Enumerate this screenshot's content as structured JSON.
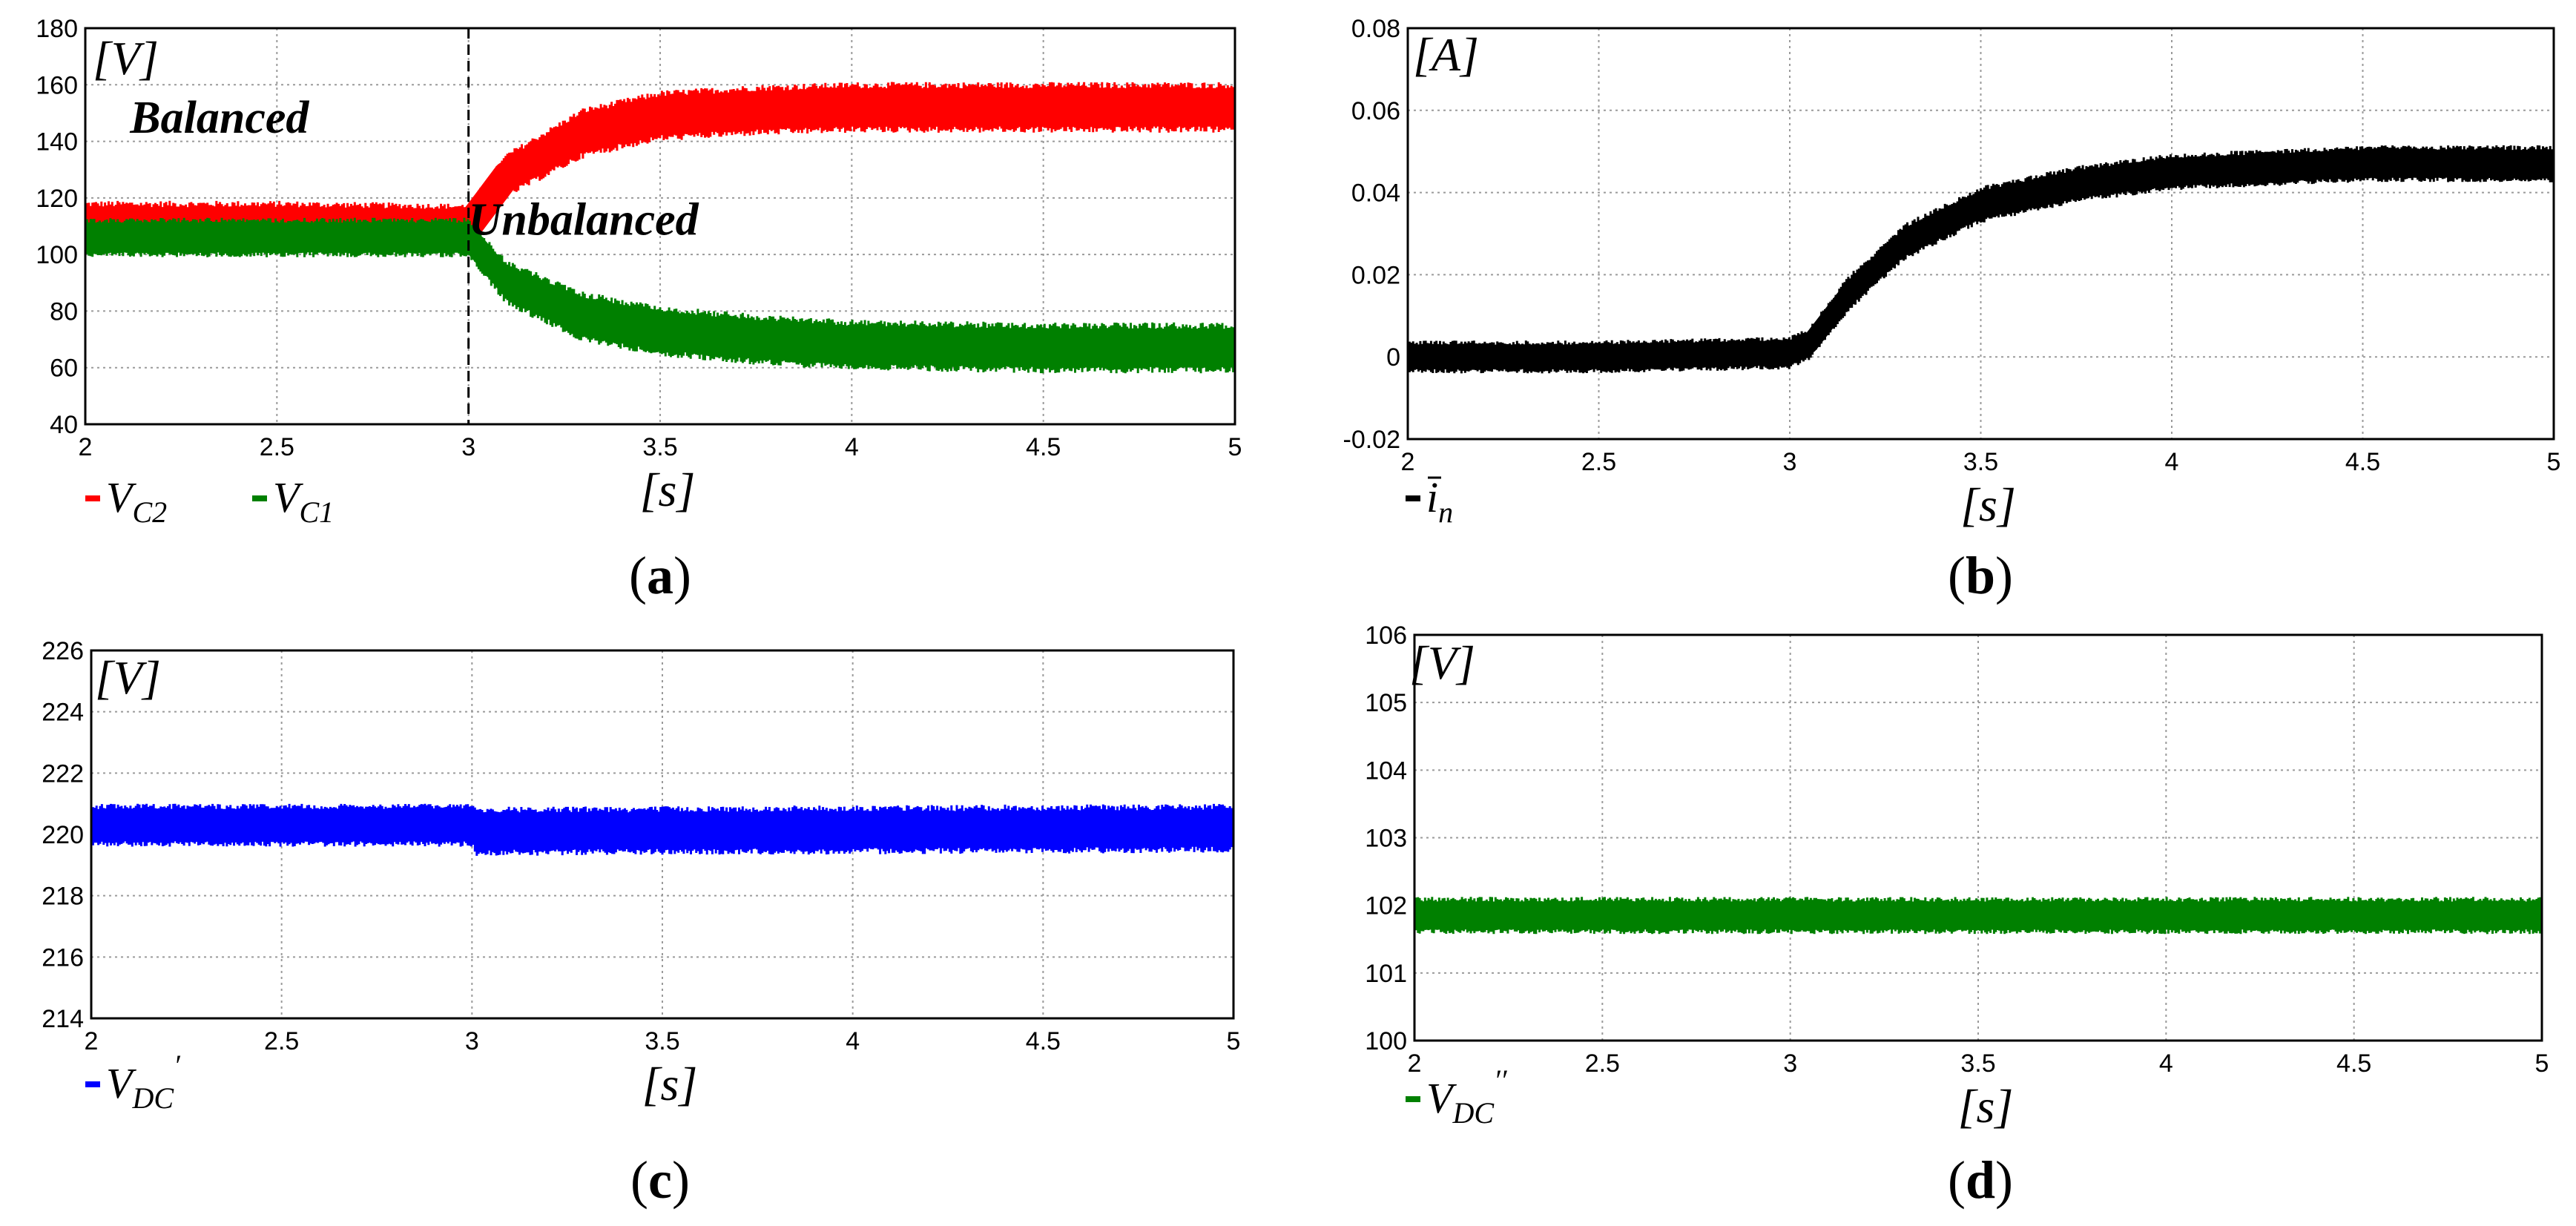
{
  "chart_data": [
    {
      "id": "a",
      "type": "line",
      "caption": "a",
      "y_unit": "[V]",
      "xlabel": "[s]",
      "xlim": [
        2,
        5
      ],
      "ylim": [
        40,
        180
      ],
      "xticks": [
        "2",
        "2.5",
        "3",
        "3.5",
        "4",
        "4.5",
        "5"
      ],
      "yticks": [
        "40",
        "60",
        "80",
        "100",
        "120",
        "140",
        "160",
        "180"
      ],
      "event_time": 3,
      "annotations": [
        {
          "text": "Balanced",
          "x": 2.35,
          "y": 143
        },
        {
          "text": "Unbalanced",
          "x": 3.3,
          "y": 107
        }
      ],
      "series": [
        {
          "name": "V",
          "sub": "C2",
          "color": "#ff0000",
          "x": [
            2,
            2.5,
            3,
            3.1,
            3.3,
            3.5,
            3.75,
            4,
            4.5,
            5
          ],
          "y": [
            110,
            110,
            110,
            128,
            143,
            149,
            151,
            152,
            152,
            152
          ],
          "band": [
            18,
            18,
            16,
            16,
            18,
            18,
            18,
            18,
            18,
            18
          ]
        },
        {
          "name": "V",
          "sub": "C1",
          "color": "#008000",
          "x": [
            2,
            2.5,
            3,
            3.1,
            3.3,
            3.5,
            3.75,
            4,
            4.5,
            5
          ],
          "y": [
            106,
            106,
            106,
            90,
            78,
            73,
            70,
            68,
            67,
            67
          ],
          "band": [
            14,
            14,
            14,
            16,
            18,
            18,
            18,
            18,
            18,
            18
          ]
        }
      ]
    },
    {
      "id": "b",
      "type": "line",
      "caption": "b",
      "y_unit": "[A]",
      "xlabel": "[s]",
      "xlim": [
        2,
        5
      ],
      "ylim": [
        -0.02,
        0.08
      ],
      "xticks": [
        "2",
        "2.5",
        "3",
        "3.5",
        "4",
        "4.5",
        "5"
      ],
      "yticks": [
        "-0.02",
        "0",
        "0.02",
        "0.04",
        "0.06",
        "0.08"
      ],
      "series": [
        {
          "name": "i",
          "sub": "n",
          "overbar": true,
          "color": "#000000",
          "x": [
            2,
            2.5,
            3,
            3.05,
            3.15,
            3.3,
            3.5,
            3.75,
            4,
            4.5,
            5
          ],
          "y": [
            0,
            0,
            0.001,
            0.003,
            0.015,
            0.028,
            0.037,
            0.042,
            0.045,
            0.047,
            0.047
          ],
          "band": [
            0.008,
            0.008,
            0.008,
            0.008,
            0.009,
            0.009,
            0.009,
            0.009,
            0.009,
            0.009,
            0.009
          ]
        }
      ]
    },
    {
      "id": "c",
      "type": "line",
      "caption": "c",
      "y_unit": "[V]",
      "xlabel": "[s]",
      "xlim": [
        2,
        5
      ],
      "ylim": [
        214,
        226
      ],
      "xticks": [
        "2",
        "2.5",
        "3",
        "3.5",
        "4",
        "4.5",
        "5"
      ],
      "yticks": [
        "214",
        "216",
        "218",
        "220",
        "222",
        "224",
        "226"
      ],
      "series": [
        {
          "name": "V",
          "sub": "DC",
          "prime": "′",
          "color": "#0000ff",
          "x": [
            2,
            3,
            3.01,
            5
          ],
          "y": [
            220.3,
            220.3,
            220.1,
            220.2
          ],
          "band": [
            1.4,
            1.4,
            1.6,
            1.6
          ]
        }
      ]
    },
    {
      "id": "d",
      "type": "line",
      "caption": "d",
      "y_unit": "[V]",
      "xlabel": "[s]",
      "xlim": [
        2,
        5
      ],
      "ylim": [
        100,
        106
      ],
      "xticks": [
        "2",
        "2.5",
        "3",
        "3.5",
        "4",
        "4.5",
        "5"
      ],
      "yticks": [
        "100",
        "101",
        "102",
        "103",
        "104",
        "105",
        "106"
      ],
      "series": [
        {
          "name": "V",
          "sub": "DC",
          "prime": "′′",
          "color": "#008000",
          "x": [
            2,
            5
          ],
          "y": [
            101.85,
            101.85
          ],
          "band": [
            0.55,
            0.55
          ]
        }
      ]
    }
  ]
}
